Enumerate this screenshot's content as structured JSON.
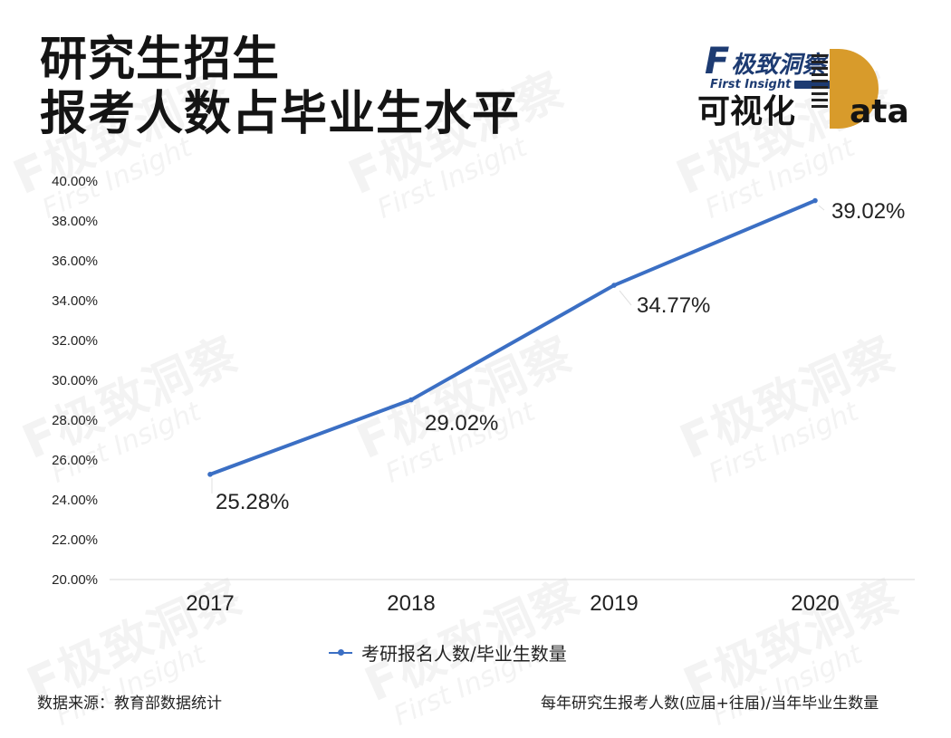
{
  "header": {
    "title_line1": "研究生招生",
    "title_line2": "报考人数占毕业生水平"
  },
  "brand": {
    "f_mark": "F",
    "cn_top": "极致洞察",
    "en_sub": "First Insight",
    "cn_bottom": "可视化",
    "data_tail": "ata"
  },
  "watermark": {
    "main": "F极致洞察",
    "sub": "First Insight"
  },
  "chart_data": {
    "type": "line",
    "categories": [
      "2017",
      "2018",
      "2019",
      "2020"
    ],
    "values": [
      25.28,
      29.02,
      34.77,
      39.02
    ],
    "data_labels": [
      "25.28%",
      "29.02%",
      "34.77%",
      "39.02%"
    ],
    "series": [
      {
        "name": "考研报名人数/毕业生数量",
        "values": [
          25.28,
          29.02,
          34.77,
          39.02
        ]
      }
    ],
    "ylim": [
      20,
      40
    ],
    "yticks": [
      20,
      22,
      24,
      26,
      28,
      30,
      32,
      34,
      36,
      38,
      40
    ],
    "ytick_labels": [
      "20.00%",
      "22.00%",
      "24.00%",
      "26.00%",
      "28.00%",
      "30.00%",
      "32.00%",
      "34.00%",
      "36.00%",
      "38.00%",
      "40.00%"
    ],
    "legend_position": "bottom-center",
    "grid": false,
    "line_color": "#3b6fc4"
  },
  "footer": {
    "source": "数据来源：教育部数据统计",
    "note": "每年研究生报考人数(应届+往届)/当年毕业生数量"
  }
}
